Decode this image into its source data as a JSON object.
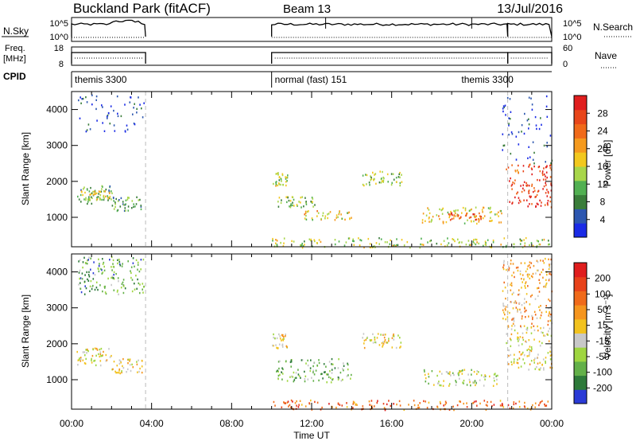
{
  "header": {
    "site": "Buckland Park (fitACF)",
    "beam": "Beam 13",
    "date": "13/Jul/2016"
  },
  "summary_panels": {
    "nsky_label": "N.Sky",
    "nsky_ticks": [
      "10^5",
      "10^0"
    ],
    "nsearch_label": "N.Search",
    "nsearch_ticks": [
      "10^5",
      "10^0"
    ],
    "freq_label": "Freq.",
    "freq_unit": "[MHz]",
    "freq_ticks": [
      "18",
      "8"
    ],
    "nave_label": "Nave",
    "nave_ticks": [
      "60",
      "0"
    ],
    "cpid_label": "CPID",
    "cpid_modes": [
      {
        "name": "themis 3300",
        "start_h": 0,
        "end_h": 3.7
      },
      {
        "name": "normal (fast) 151",
        "start_h": 10,
        "end_h": 21.8
      },
      {
        "name": "themis 3300",
        "start_h": 21.8,
        "end_h": 24
      }
    ]
  },
  "x_axis": {
    "label": "Time UT",
    "ticks": [
      "00:00",
      "04:00",
      "08:00",
      "12:00",
      "16:00",
      "20:00",
      "00:00"
    ],
    "range_h": [
      0,
      24
    ]
  },
  "chart_data": [
    {
      "type": "heatmap",
      "quantity": "Power",
      "ylabel": "Slant Range [km]",
      "ylim": [
        180,
        4500
      ],
      "yticks": [
        "1000",
        "2000",
        "3000",
        "4000"
      ],
      "xlim": [
        0,
        24
      ],
      "colorbar_label": "Power [dB]",
      "colorbar_ticks": [
        "4",
        "8",
        "12",
        "16",
        "20",
        "24",
        "28"
      ],
      "colorbar_colors": [
        "#1a2be6",
        "#2d57b0",
        "#3a7d3a",
        "#52b052",
        "#a8d64a",
        "#f2c81e",
        "#f59a1e",
        "#f06a1a",
        "#e8461a",
        "#e01e1e"
      ],
      "patches": [
        {
          "t0": 0.2,
          "t1": 2.0,
          "r0": 1400,
          "r1": 1900,
          "level": 0.35
        },
        {
          "t0": 0.4,
          "t1": 1.9,
          "r0": 1500,
          "r1": 1750,
          "level": 0.55
        },
        {
          "t0": 2.0,
          "t1": 3.5,
          "r0": 1200,
          "r1": 1600,
          "level": 0.3
        },
        {
          "t0": 0.3,
          "t1": 3.6,
          "r0": 3400,
          "r1": 4450,
          "level": 0.1
        },
        {
          "t0": 10.0,
          "t1": 10.8,
          "r0": 1900,
          "r1": 2300,
          "level": 0.45
        },
        {
          "t0": 10.2,
          "t1": 12.2,
          "r0": 1300,
          "r1": 1600,
          "level": 0.4
        },
        {
          "t0": 11.6,
          "t1": 14.0,
          "r0": 950,
          "r1": 1200,
          "level": 0.55
        },
        {
          "t0": 10.0,
          "t1": 24.0,
          "r0": 180,
          "r1": 450,
          "level": 0.45
        },
        {
          "t0": 14.5,
          "t1": 16.5,
          "r0": 1900,
          "r1": 2300,
          "level": 0.4
        },
        {
          "t0": 17.5,
          "t1": 21.5,
          "r0": 850,
          "r1": 1300,
          "level": 0.55
        },
        {
          "t0": 18.8,
          "t1": 20.5,
          "r0": 950,
          "r1": 1150,
          "level": 0.75
        },
        {
          "t0": 21.7,
          "t1": 24.0,
          "r0": 1300,
          "r1": 2500,
          "level": 0.85
        },
        {
          "t0": 21.5,
          "t1": 24.0,
          "r0": 2500,
          "r1": 4400,
          "level": 0.1
        }
      ]
    },
    {
      "type": "heatmap",
      "quantity": "Velocity",
      "ylabel": "Slant Range [km]",
      "ylim": [
        180,
        4500
      ],
      "yticks": [
        "1000",
        "2000",
        "3000",
        "4000"
      ],
      "xlim": [
        0,
        24
      ],
      "colorbar_label": "Velocity [m s⁻¹]",
      "colorbar_ticks": [
        "200",
        "100",
        "50",
        "15",
        "-15",
        "-50",
        "-100",
        "-200"
      ],
      "colorbar_colors": [
        "#2b3bd6",
        "#2e7a3a",
        "#63b049",
        "#9fd640",
        "#c8c8c8",
        "#f2c21e",
        "#f5951e",
        "#f06a1a",
        "#e8421a",
        "#e01e1e"
      ],
      "patches": [
        {
          "t0": 0.2,
          "t1": 2.0,
          "r0": 1400,
          "r1": 1900,
          "level": 0.5
        },
        {
          "t0": 2.0,
          "t1": 3.5,
          "r0": 1200,
          "r1": 1600,
          "level": 0.5
        },
        {
          "t0": 0.3,
          "t1": 3.6,
          "r0": 3400,
          "r1": 4450,
          "level": 0.25
        },
        {
          "t0": 10.0,
          "t1": 10.8,
          "r0": 1900,
          "r1": 2300,
          "level": 0.5
        },
        {
          "t0": 10.2,
          "t1": 14.0,
          "r0": 950,
          "r1": 1600,
          "level": 0.3
        },
        {
          "t0": 10.0,
          "t1": 24.0,
          "r0": 180,
          "r1": 450,
          "level": 0.75
        },
        {
          "t0": 14.5,
          "t1": 16.5,
          "r0": 1900,
          "r1": 2300,
          "level": 0.5
        },
        {
          "t0": 17.5,
          "t1": 21.5,
          "r0": 850,
          "r1": 1300,
          "level": 0.4
        },
        {
          "t0": 21.7,
          "t1": 24.0,
          "r0": 1300,
          "r1": 2500,
          "level": 0.5
        },
        {
          "t0": 21.5,
          "t1": 24.0,
          "r0": 2500,
          "r1": 4400,
          "level": 0.6
        }
      ]
    }
  ]
}
